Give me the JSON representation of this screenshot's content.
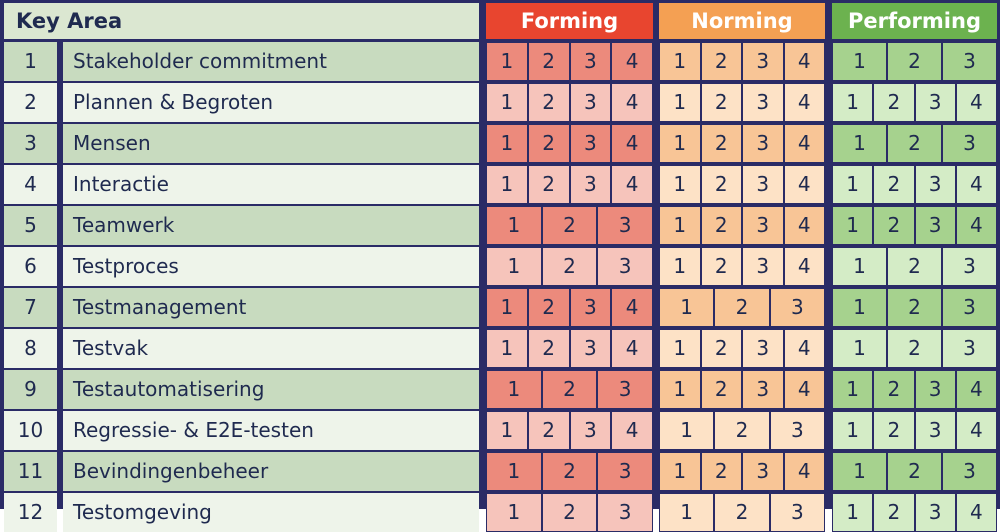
{
  "header": {
    "key_area_label": "Key Area",
    "phases": [
      {
        "label": "Forming",
        "color": "#e8452f"
      },
      {
        "label": "Norming",
        "color": "#f4a053"
      },
      {
        "label": "Performing",
        "color": "#6cb24f"
      }
    ]
  },
  "colors": {
    "border": "#2a2b66",
    "key_bg_dark": "#c8dbbf",
    "key_bg_light": "#eef4ea",
    "forming_dark": "#ec8a7c",
    "forming_light": "#f6c4bb",
    "norming_dark": "#f8c596",
    "norming_light": "#fde2c6",
    "performing_dark": "#a6d28e",
    "performing_light": "#d4ecc6"
  },
  "rows": [
    {
      "num": "1",
      "name": "Stakeholder commitment",
      "forming": [
        "1",
        "2",
        "3",
        "4"
      ],
      "norming": [
        "1",
        "2",
        "3",
        "4"
      ],
      "performing": [
        "1",
        "2",
        "3"
      ]
    },
    {
      "num": "2",
      "name": "Plannen & Begroten",
      "forming": [
        "1",
        "2",
        "3",
        "4"
      ],
      "norming": [
        "1",
        "2",
        "3",
        "4"
      ],
      "performing": [
        "1",
        "2",
        "3",
        "4"
      ]
    },
    {
      "num": "3",
      "name": "Mensen",
      "forming": [
        "1",
        "2",
        "3",
        "4"
      ],
      "norming": [
        "1",
        "2",
        "3",
        "4"
      ],
      "performing": [
        "1",
        "2",
        "3"
      ]
    },
    {
      "num": "4",
      "name": "Interactie",
      "forming": [
        "1",
        "2",
        "3",
        "4"
      ],
      "norming": [
        "1",
        "2",
        "3",
        "4"
      ],
      "performing": [
        "1",
        "2",
        "3",
        "4"
      ]
    },
    {
      "num": "5",
      "name": "Teamwerk",
      "forming": [
        "1",
        "2",
        "3"
      ],
      "norming": [
        "1",
        "2",
        "3",
        "4"
      ],
      "performing": [
        "1",
        "2",
        "3",
        "4"
      ]
    },
    {
      "num": "6",
      "name": "Testproces",
      "forming": [
        "1",
        "2",
        "3"
      ],
      "norming": [
        "1",
        "2",
        "3",
        "4"
      ],
      "performing": [
        "1",
        "2",
        "3"
      ]
    },
    {
      "num": "7",
      "name": "Testmanagement",
      "forming": [
        "1",
        "2",
        "3",
        "4"
      ],
      "norming": [
        "1",
        "2",
        "3"
      ],
      "performing": [
        "1",
        "2",
        "3"
      ]
    },
    {
      "num": "8",
      "name": "Testvak",
      "forming": [
        "1",
        "2",
        "3",
        "4"
      ],
      "norming": [
        "1",
        "2",
        "3",
        "4"
      ],
      "performing": [
        "1",
        "2",
        "3"
      ]
    },
    {
      "num": "9",
      "name": "Testautomatisering",
      "forming": [
        "1",
        "2",
        "3"
      ],
      "norming": [
        "1",
        "2",
        "3",
        "4"
      ],
      "performing": [
        "1",
        "2",
        "3",
        "4"
      ]
    },
    {
      "num": "10",
      "name": "Regressie- & E2E-testen",
      "forming": [
        "1",
        "2",
        "3",
        "4"
      ],
      "norming": [
        "1",
        "2",
        "3"
      ],
      "performing": [
        "1",
        "2",
        "3",
        "4"
      ]
    },
    {
      "num": "11",
      "name": "Bevindingenbeheer",
      "forming": [
        "1",
        "2",
        "3"
      ],
      "norming": [
        "1",
        "2",
        "3",
        "4"
      ],
      "performing": [
        "1",
        "2",
        "3"
      ]
    },
    {
      "num": "12",
      "name": "Testomgeving",
      "forming": [
        "1",
        "2",
        "3"
      ],
      "norming": [
        "1",
        "2",
        "3"
      ],
      "performing": [
        "1",
        "2",
        "3",
        "4"
      ]
    }
  ]
}
